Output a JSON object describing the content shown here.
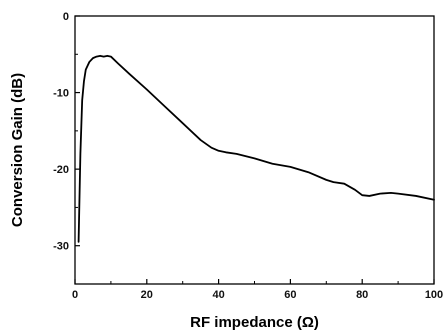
{
  "chart_data": {
    "type": "line",
    "xlabel": "RF impedance (Ω)",
    "ylabel": "Conversion Gain (dB)",
    "xlim": [
      0,
      100
    ],
    "ylim": [
      -35,
      0
    ],
    "xticks": [
      0,
      20,
      40,
      60,
      80,
      100
    ],
    "yticks": [
      0,
      -10,
      -20,
      -30
    ],
    "grid": false,
    "series": [
      {
        "color": "#000000",
        "x": [
          1,
          1.5,
          2,
          2.5,
          3,
          4,
          5,
          6,
          7,
          8,
          9,
          10,
          12,
          15,
          20,
          25,
          30,
          35,
          38,
          40,
          42,
          45,
          50,
          55,
          60,
          65,
          70,
          72,
          75,
          78,
          80,
          82,
          85,
          88,
          90,
          95,
          100
        ],
        "y": [
          -29.5,
          -18,
          -11,
          -8.5,
          -7,
          -6,
          -5.5,
          -5.3,
          -5.2,
          -5.3,
          -5.2,
          -5.3,
          -6.2,
          -7.5,
          -9.6,
          -11.8,
          -14,
          -16.2,
          -17.2,
          -17.6,
          -17.8,
          -18,
          -18.6,
          -19.3,
          -19.7,
          -20.4,
          -21.4,
          -21.7,
          -21.9,
          -22.7,
          -23.4,
          -23.5,
          -23.2,
          -23.1,
          -23.2,
          -23.5,
          -24
        ]
      }
    ]
  }
}
